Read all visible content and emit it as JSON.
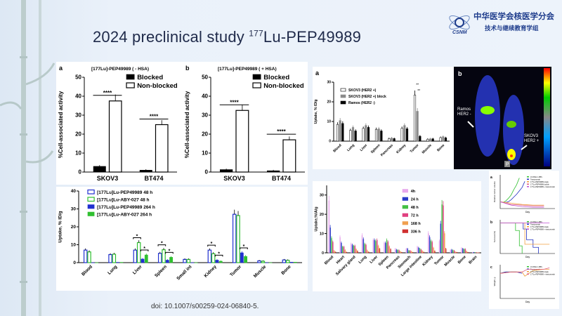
{
  "slide": {
    "title_prefix": "2024 preclinical study ",
    "title_sup": "177",
    "title_suffix": "Lu-PEP49989",
    "doi": "doi: 10.1007/s00259-024-06840-5."
  },
  "logo": {
    "line1": "中华医学会核医学分会",
    "line2": "技术与继续教育学组",
    "mark": "CSNM"
  },
  "image_b": {
    "label": "b",
    "ann1": "Ramos\nHER2 -",
    "ann2": "SKOV3\nHER2 +",
    "marker": "P"
  },
  "chart_data": [
    {
      "id": "a",
      "type": "bar",
      "panel_label": "a",
      "title": "[177Lu]-PEP49989 ( - HSA)",
      "ylabel": "%Cell-associated activity",
      "ylim": [
        0,
        50
      ],
      "yticks": [
        0,
        10,
        20,
        30,
        40,
        50
      ],
      "categories": [
        "SKOV3",
        "BT474"
      ],
      "series": [
        {
          "name": "Blocked",
          "values": [
            3,
            1
          ],
          "color": "#000000",
          "hollow": false
        },
        {
          "name": "Non-blocked",
          "values": [
            37.5,
            25
          ],
          "color": "#000000",
          "hollow": true
        }
      ],
      "annotations": [
        "****",
        "****"
      ]
    },
    {
      "id": "b",
      "type": "bar",
      "panel_label": "b",
      "title": "[177Lu]-PEP49989 ( + HSA)",
      "ylabel": "%Cell-associated activity",
      "ylim": [
        0,
        50
      ],
      "yticks": [
        0,
        10,
        20,
        30,
        40,
        50
      ],
      "categories": [
        "SKOV3",
        "BT474"
      ],
      "series": [
        {
          "name": "Blocked",
          "values": [
            1.3,
            0.7
          ],
          "color": "#000000",
          "hollow": false
        },
        {
          "name": "Non-blocked",
          "values": [
            32.5,
            17
          ],
          "color": "#000000",
          "hollow": true
        }
      ],
      "annotations": [
        "****",
        "****"
      ]
    },
    {
      "id": "c",
      "type": "bar",
      "panel_label": "",
      "title": "",
      "ylabel": "Uptake, % ID/g",
      "ylim": [
        0,
        40
      ],
      "yticks": [
        0,
        10,
        20,
        30,
        40
      ],
      "categories": [
        "Blood",
        "Lung",
        "Liver",
        "Spleen",
        "Small int",
        "Kidney",
        "Tumor",
        "Muscle",
        "Bone"
      ],
      "series": [
        {
          "name": "[177Lu]Lu-PEP49989  48 h",
          "values": [
            7,
            4.5,
            7,
            5.2,
            1.8,
            7,
            27,
            1,
            1.5
          ],
          "color": "#2030d0",
          "hollow": true
        },
        {
          "name": "[177Lu]Lu-ABY-027 48 h",
          "values": [
            6,
            4.7,
            11.2,
            7.2,
            1.8,
            5,
            26.3,
            0.8,
            1.3
          ],
          "color": "#30c030",
          "hollow": true
        },
        {
          "name": "[177Lu]Lu-PEP49989 264 h",
          "values": [
            0,
            0.2,
            2,
            1.4,
            0,
            1.4,
            5.5,
            0,
            0.3
          ],
          "color": "#2030d0",
          "hollow": false
        },
        {
          "name": "[177Lu]Lu-ABY-027 264 h",
          "values": [
            0,
            0.2,
            4.3,
            3,
            0,
            0.8,
            3.5,
            0,
            0.3
          ],
          "color": "#30c030",
          "hollow": false
        }
      ],
      "annotations": [
        "*"
      ]
    },
    {
      "id": "d",
      "type": "bar",
      "panel_label": "a",
      "title": "",
      "ylabel": "Uptake, % ID/g",
      "ylim": [
        0,
        30
      ],
      "yticks": [
        0,
        10,
        20,
        30
      ],
      "categories": [
        "Blood",
        "Lung",
        "Liver",
        "Spleen",
        "Pancreas",
        "Kidney",
        "Tumor",
        "Muscle",
        "Bone"
      ],
      "series": [
        {
          "name": "SKOV3 (HER2 +)",
          "values": [
            8.5,
            5.5,
            6.5,
            6,
            1.3,
            6.5,
            23.5,
            1,
            1.8
          ],
          "color": "#ffffff",
          "hollow": false
        },
        {
          "name": "SKOV3 (HER2 +) block",
          "values": [
            10.5,
            7,
            8,
            6.3,
            1.6,
            8,
            15.2,
            1.2,
            2.3
          ],
          "color": "#8a8a8a",
          "hollow": false
        },
        {
          "name": "Ramos (HER2 -)",
          "values": [
            9,
            5.2,
            7,
            5.2,
            1.3,
            6.3,
            2.5,
            1.2,
            1.7
          ],
          "color": "#000000",
          "hollow": false
        }
      ],
      "annotations": [
        "**",
        "**"
      ]
    },
    {
      "id": "e",
      "type": "bar",
      "panel_label": "",
      "title": "",
      "ylabel": "Uptake,%IA/g",
      "ylim": [
        0,
        35
      ],
      "yticks": [
        0,
        10,
        20,
        30
      ],
      "categories": [
        "Blood",
        "Heart",
        "Salivary gland",
        "Lung",
        "Liver",
        "Spleen",
        "Pancreas",
        "Stomach",
        "Large intestine",
        "Kidney",
        "Tumor",
        "Muscle",
        "Bone",
        "Brain"
      ],
      "series": [
        {
          "name": "4h",
          "values": [
            27,
            8,
            4.5,
            9,
            6.5,
            5,
            2,
            2,
            3,
            10,
            6,
            1.3,
            2.3,
            0.3
          ],
          "color": "#e8a8ec",
          "hollow": false
        },
        {
          "name": "24 h",
          "values": [
            13,
            5,
            4,
            7,
            6.5,
            5,
            1.5,
            2,
            2.5,
            8,
            15,
            1.5,
            2,
            0.3
          ],
          "color": "#2a3cc8",
          "hollow": false
        },
        {
          "name": "48 h",
          "values": [
            7.5,
            3,
            3.5,
            4.5,
            6,
            6.5,
            1.3,
            1,
            2,
            6,
            25,
            1.2,
            1.8,
            0.2
          ],
          "color": "#44c044",
          "hollow": false
        },
        {
          "name": "72 h",
          "values": [
            5.5,
            3,
            3.5,
            4,
            6.5,
            5.5,
            1.2,
            1,
            1.5,
            5.5,
            24.5,
            1,
            1.8,
            0.2
          ],
          "color": "#e04080",
          "hollow": false
        },
        {
          "name": "168 h",
          "values": [
            1,
            1.3,
            1.8,
            1.2,
            3.5,
            3.2,
            0.6,
            0.6,
            0.8,
            2.5,
            10,
            0.5,
            0.7,
            0.1
          ],
          "color": "#f0a050",
          "hollow": false
        },
        {
          "name": "336 h",
          "values": [
            0.5,
            0.4,
            0.8,
            0.5,
            2,
            1.8,
            0.3,
            0.3,
            0.4,
            0.8,
            2,
            0.3,
            0.3,
            0.1
          ],
          "color": "#d03030",
          "hollow": false
        }
      ],
      "annotations": []
    },
    {
      "id": "f",
      "type": "line",
      "panels": [
        {
          "label": "a",
          "ylabel": "Relative tumor volume",
          "xlabel": "Day",
          "xlim": [
            0,
            100
          ],
          "series": [
            {
              "name": "1% BSA in PBS",
              "color": "#30c030",
              "x": [
                0,
                5,
                10,
                15,
                20,
                25,
                30,
                35
              ],
              "y": [
                1,
                0.9,
                1.1,
                1.5,
                2,
                2.8,
                3.5,
                4.5
              ]
            },
            {
              "name": "Trastuzumab",
              "color": "#2030c0",
              "x": [
                0,
                5,
                10,
                15,
                20,
                25,
                30,
                35,
                40,
                45
              ],
              "y": [
                1,
                0.9,
                0.9,
                1,
                1.3,
                1.7,
                2.1,
                2.6,
                3.1,
                4
              ]
            },
            {
              "name": "177Lu-PEP49989 single",
              "color": "#f0a040",
              "x": [
                0,
                20,
                40,
                60,
                80
              ],
              "y": [
                1,
                0.8,
                0.6,
                0.5,
                0.5
              ]
            },
            {
              "name": "177Lu-PEP49989 double",
              "color": "#e06080",
              "x": [
                0,
                20,
                40,
                60,
                80
              ],
              "y": [
                1,
                0.6,
                0.5,
                0.4,
                0.4
              ]
            },
            {
              "name": "177Lu-PEP49989 + trastuzumab",
              "color": "#c050d0",
              "x": [
                0,
                20,
                40,
                60,
                80
              ],
              "y": [
                1,
                0.5,
                0.3,
                0.2,
                0.2
              ]
            }
          ]
        },
        {
          "label": "b",
          "ylabel": "Survival (%)",
          "xlabel": "Day",
          "xlim": [
            0,
            100
          ],
          "series": [
            {
              "name": "1% BSA in PBS",
              "color": "#30c030",
              "x": [
                0,
                28,
                28,
                35,
                35,
                40,
                40
              ],
              "y": [
                100,
                100,
                75,
                75,
                25,
                25,
                0
              ]
            },
            {
              "name": "Trastuzumab",
              "color": "#2030c0",
              "x": [
                0,
                42,
                42,
                48,
                48,
                60,
                60,
                70,
                70
              ],
              "y": [
                100,
                100,
                80,
                80,
                45,
                45,
                20,
                20,
                0
              ]
            },
            {
              "name": "177Lu-PEP49989 single",
              "color": "#f0a040",
              "x": [
                0,
                45,
                45,
                90
              ],
              "y": [
                100,
                100,
                30,
                30
              ]
            },
            {
              "name": "177Lu-PEP49989 + trastuzumab",
              "color": "#c050d0",
              "x": [
                0,
                90
              ],
              "y": [
                100,
                100
              ]
            }
          ]
        },
        {
          "label": "c",
          "ylabel": "Weight, g",
          "xlabel": "Day",
          "xlim": [
            0,
            100
          ],
          "series": [
            {
              "name": "1% BSA in PBS",
              "color": "#30c030",
              "x": [
                0,
                10,
                20,
                30
              ],
              "y": [
                18,
                19,
                19,
                19
              ]
            },
            {
              "name": "Trastuzumab",
              "color": "#2030c0",
              "x": [
                0,
                10,
                20,
                30,
                40
              ],
              "y": [
                18,
                19,
                19,
                19,
                18
              ]
            },
            {
              "name": "177Lu-PEP49989 single",
              "color": "#f0a040",
              "x": [
                0,
                20,
                40,
                45,
                60,
                80,
                90
              ],
              "y": [
                18,
                19,
                19,
                16,
                20,
                21,
                21
              ]
            },
            {
              "name": "177Lu-PEP49989 + trastuzumab",
              "color": "#e06080",
              "x": [
                0,
                20,
                40,
                50,
                60,
                80,
                90
              ],
              "y": [
                18,
                19,
                19,
                21,
                21,
                21,
                22
              ]
            }
          ]
        }
      ]
    }
  ]
}
